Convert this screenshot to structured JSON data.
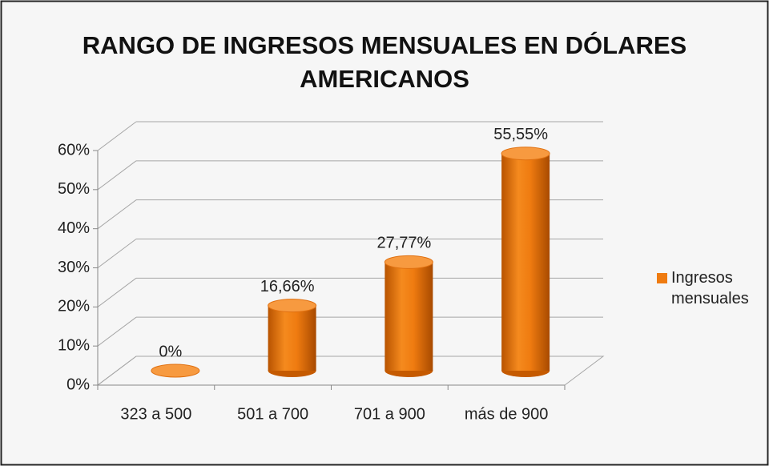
{
  "chart_data": {
    "type": "bar3d",
    "title": "RANGO DE INGRESOS MENSUALES EN DÓLARES AMERICANOS",
    "categories": [
      "323 a 500",
      "501 a 700",
      "701 a 900",
      "más de 900"
    ],
    "series": [
      {
        "name": "Ingresos mensuales",
        "color": "#ef7b10",
        "values": [
          0,
          16.66,
          27.77,
          55.55
        ],
        "value_labels": [
          "0%",
          "16,66%",
          "27,77%",
          "55,55%"
        ]
      }
    ],
    "ylim": [
      0,
      60
    ],
    "yticks": [
      {
        "value": 0,
        "label": "0%"
      },
      {
        "value": 10,
        "label": "10%"
      },
      {
        "value": 20,
        "label": "20%"
      },
      {
        "value": 30,
        "label": "30%"
      },
      {
        "value": 40,
        "label": "40%"
      },
      {
        "value": 50,
        "label": "50%"
      },
      {
        "value": 60,
        "label": "60%"
      }
    ],
    "grid": true,
    "legend": "right"
  }
}
